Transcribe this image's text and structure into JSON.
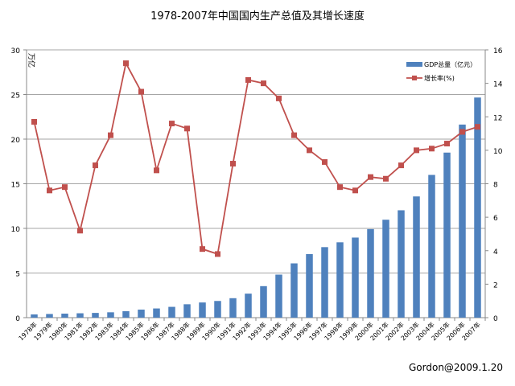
{
  "footer": "Gordon@2009.1.20",
  "chart_data": {
    "type": "bar+line",
    "title": "1978-2007年中国国内生产总值及其增长速度",
    "ylabel": "万亿",
    "ylim": [
      0,
      30
    ],
    "yticks": [
      0,
      5,
      10,
      15,
      20,
      25,
      30
    ],
    "y2lim": [
      0,
      16
    ],
    "y2ticks": [
      0,
      2,
      4,
      6,
      8,
      10,
      12,
      14,
      16
    ],
    "grid": true,
    "legend": "top-right",
    "categories": [
      "1978年",
      "1979年",
      "1980年",
      "1981年",
      "1982年",
      "1983年",
      "1984年",
      "1985年",
      "1986年",
      "1987年",
      "1988年",
      "1989年",
      "1990年",
      "1991年",
      "1992年",
      "1993年",
      "1994年",
      "1995年",
      "1996年",
      "1997年",
      "1998年",
      "1999年",
      "2000年",
      "2001年",
      "2002年",
      "2003年",
      "2004年",
      "2005年",
      "2006年",
      "2007年"
    ],
    "series": [
      {
        "name": "GDP总量（亿元）",
        "type": "bar",
        "axis": "left",
        "color": "#4f81bd",
        "values": [
          0.36,
          0.41,
          0.45,
          0.49,
          0.53,
          0.6,
          0.72,
          0.9,
          1.03,
          1.21,
          1.5,
          1.7,
          1.87,
          2.18,
          2.69,
          3.53,
          4.82,
          6.08,
          7.12,
          7.9,
          8.44,
          8.97,
          9.92,
          10.97,
          12.03,
          13.58,
          15.99,
          18.49,
          21.63,
          24.66
        ]
      },
      {
        "name": "增长率(%)",
        "type": "line",
        "axis": "right",
        "color": "#c0504d",
        "values": [
          11.7,
          7.6,
          7.8,
          5.2,
          9.1,
          10.9,
          15.2,
          13.5,
          8.8,
          11.6,
          11.3,
          4.1,
          3.8,
          9.2,
          14.2,
          14.0,
          13.1,
          10.9,
          10.0,
          9.3,
          7.8,
          7.6,
          8.4,
          8.3,
          9.1,
          10.0,
          10.1,
          10.4,
          11.1,
          11.4
        ]
      }
    ]
  }
}
